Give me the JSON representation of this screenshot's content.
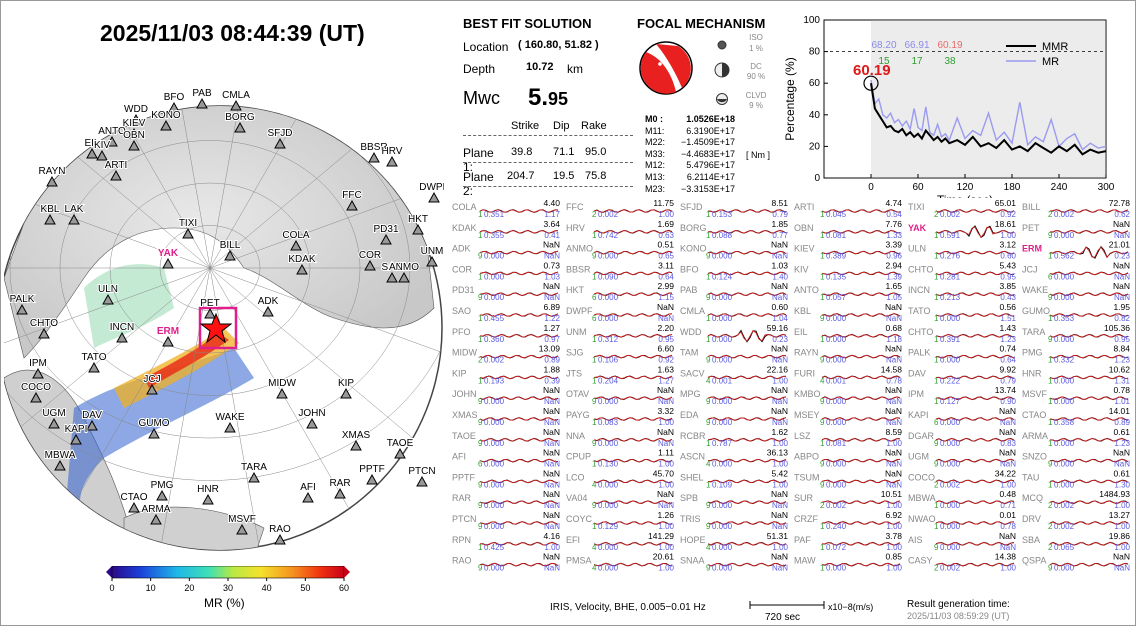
{
  "header": {
    "datetime": "2025/11/03  08:44:39 (UT)"
  },
  "best_fit": {
    "title": "BEST FIT SOLUTION",
    "location_label": "Location",
    "location_value": "( 160.80,  51.82 )",
    "depth_label": "Depth",
    "depth_value": "10.72",
    "depth_unit": "km",
    "mwc_label": "Mwc",
    "mwc_value_int": "5.",
    "mwc_value_dec": "95",
    "plane_headers": [
      "Strike",
      "Dip",
      "Rake"
    ],
    "planes": [
      {
        "label": "Plane 1:",
        "strike": "39.8",
        "dip": "71.1",
        "rake": "95.0"
      },
      {
        "label": "Plane 2:",
        "strike": "204.7",
        "dip": "19.5",
        "rake": "75.8"
      }
    ]
  },
  "focal_mechanism": {
    "title": "FOCAL MECHANISM",
    "components": [
      {
        "name": "ISO",
        "percent": "1 %"
      },
      {
        "name": "DC",
        "percent": "90 %"
      },
      {
        "name": "CLVD",
        "percent": "9 %"
      }
    ],
    "moments": [
      {
        "key": "M0 :",
        "value": "1.0526E+18"
      },
      {
        "key": "M11:",
        "value": "6.3190E+17"
      },
      {
        "key": "M22:",
        "value": "−1.4509E+17"
      },
      {
        "key": "M33:",
        "value": "−4.4683E+17"
      },
      {
        "key": "M12:",
        "value": "5.4796E+17"
      },
      {
        "key": "M13:",
        "value": "6.2114E+17"
      },
      {
        "key": "M23:",
        "value": "−3.3153E+17"
      }
    ],
    "unit": "[ Nm ]"
  },
  "chart_data": {
    "type": "line",
    "xlabel": "Time (sec)",
    "ylabel": "Percentage (%)",
    "xlim": [
      -60,
      300
    ],
    "ylim": [
      0,
      100
    ],
    "xticks": [
      0,
      60,
      120,
      180,
      240,
      300
    ],
    "yticks": [
      0,
      20,
      40,
      60,
      80,
      100
    ],
    "threshold": 80,
    "marker_value": "60.19",
    "top_values": [
      {
        "vr": "68.20",
        "count": "15",
        "vr_color": "#8b8bea",
        "count_color": "#2e9e2e"
      },
      {
        "vr": "66.91",
        "count": "17",
        "vr_color": "#8b8bea",
        "count_color": "#2e9e2e"
      },
      {
        "vr": "60.19",
        "count": "38",
        "vr_color": "#e86a6a",
        "count_color": "#2e9e2e"
      }
    ],
    "series": [
      {
        "name": "MMR",
        "color": "#000000",
        "x": [
          0,
          5,
          10,
          15,
          20,
          25,
          30,
          35,
          40,
          45,
          50,
          55,
          60,
          65,
          70,
          75,
          80,
          85,
          90,
          95,
          100,
          110,
          120,
          130,
          140,
          150,
          160,
          170,
          180,
          190,
          200,
          210,
          220,
          230,
          240,
          250,
          260,
          270,
          280,
          290,
          300
        ],
        "y": [
          60,
          44,
          40,
          36,
          32,
          33,
          30,
          29,
          31,
          27,
          29,
          26,
          28,
          25,
          30,
          27,
          24,
          26,
          23,
          25,
          22,
          24,
          21,
          26,
          20,
          22,
          19,
          24,
          18,
          20,
          17,
          22,
          19,
          16,
          20,
          17,
          21,
          15,
          18,
          16,
          17
        ]
      },
      {
        "name": "MR",
        "color": "#9a9af0",
        "x": [
          0,
          5,
          10,
          15,
          20,
          25,
          30,
          35,
          40,
          45,
          50,
          55,
          60,
          65,
          70,
          75,
          80,
          85,
          90,
          95,
          100,
          110,
          120,
          130,
          140,
          150,
          160,
          170,
          180,
          190,
          200,
          210,
          220,
          230,
          240,
          250,
          260,
          270,
          280,
          290,
          300
        ],
        "y": [
          62,
          47,
          50,
          40,
          38,
          41,
          35,
          37,
          33,
          36,
          31,
          44,
          32,
          30,
          45,
          29,
          27,
          34,
          26,
          28,
          24,
          38,
          25,
          30,
          27,
          41,
          24,
          29,
          22,
          48,
          21,
          26,
          23,
          37,
          20,
          25,
          28,
          18,
          22,
          19,
          20
        ]
      }
    ]
  },
  "map": {
    "colorbar_label": "MR (%)",
    "colorbar_ticks": [
      "0",
      "10",
      "20",
      "30",
      "40",
      "50",
      "60"
    ],
    "stations": [
      {
        "name": "WDD"
      },
      {
        "name": "BFO"
      },
      {
        "name": "PAB"
      },
      {
        "name": "CMLA"
      },
      {
        "name": "KONO"
      },
      {
        "name": "KIEV"
      },
      {
        "name": "ANTO"
      },
      {
        "name": "OBN"
      },
      {
        "name": "BORG"
      },
      {
        "name": "EIL"
      },
      {
        "name": "KIV"
      },
      {
        "name": "SFJD"
      },
      {
        "name": "BBSR"
      },
      {
        "name": "HRV"
      },
      {
        "name": "ARTI"
      },
      {
        "name": "RAYN"
      },
      {
        "name": "DWPF"
      },
      {
        "name": "KBL"
      },
      {
        "name": "LAK"
      },
      {
        "name": "FFC"
      },
      {
        "name": "TIXI"
      },
      {
        "name": "HKT"
      },
      {
        "name": "PD31"
      },
      {
        "name": "BILL"
      },
      {
        "name": "YAK"
      },
      {
        "name": "COLA"
      },
      {
        "name": "COR"
      },
      {
        "name": "UNM"
      },
      {
        "name": "ULN"
      },
      {
        "name": "SAO"
      },
      {
        "name": "ANMO"
      },
      {
        "name": "KDAK"
      },
      {
        "name": "PALK"
      },
      {
        "name": "ADK"
      },
      {
        "name": "PET"
      },
      {
        "name": "CHTO"
      },
      {
        "name": "INCN"
      },
      {
        "name": "ERM"
      },
      {
        "name": "IPM"
      },
      {
        "name": "TATO"
      },
      {
        "name": "COCO"
      },
      {
        "name": "JCJ"
      },
      {
        "name": "MIDW"
      },
      {
        "name": "KIP"
      },
      {
        "name": "UGM"
      },
      {
        "name": "DAV"
      },
      {
        "name": "KAPI"
      },
      {
        "name": "GUMO"
      },
      {
        "name": "WAKE"
      },
      {
        "name": "JOHN"
      },
      {
        "name": "TAOE"
      },
      {
        "name": "XMAS"
      },
      {
        "name": "MBWA"
      },
      {
        "name": "PTCN"
      },
      {
        "name": "TARA"
      },
      {
        "name": "PPTF"
      },
      {
        "name": "PMG"
      },
      {
        "name": "HNR"
      },
      {
        "name": "AFI"
      },
      {
        "name": "RAR"
      },
      {
        "name": "CTAO"
      },
      {
        "name": "ARMA"
      },
      {
        "name": "MSVF"
      },
      {
        "name": "RAO"
      }
    ]
  },
  "waveforms": {
    "rows": [
      [
        "COLA",
        "4.40",
        "1",
        "0.351",
        "1.17"
      ],
      [
        "FFC",
        "11.75",
        "2",
        "0.002",
        "1.00"
      ],
      [
        "SFJD",
        "8.51",
        "1",
        "0.153",
        "0.79"
      ],
      [
        "ARTI",
        "4.74",
        "1",
        "0.045",
        "0.54"
      ],
      [
        "TIXI",
        "65.01",
        "2",
        "0.002",
        "0.92"
      ],
      [
        "BILL",
        "72.78",
        "2",
        "0.002",
        "0.62"
      ],
      [
        "KDAK",
        "3.64",
        "1",
        "0.355",
        "0.41"
      ],
      [
        "HRV",
        "1.69",
        "1",
        "0.742",
        "0.63"
      ],
      [
        "BORG",
        "1.85",
        "1",
        "0.088",
        "0.77"
      ],
      [
        "OBN",
        "7.76",
        "1",
        "0.081",
        "1.33"
      ],
      [
        "YAK",
        "18.61",
        "1",
        "0.591",
        "1.00"
      ],
      [
        "PET",
        "NaN",
        "9",
        "0.000",
        "NaN"
      ],
      [
        "ADK",
        "NaN",
        "9",
        "0.000",
        "NaN"
      ],
      [
        "ANMO",
        "0.51",
        "9",
        "0.000",
        "0.65"
      ],
      [
        "KONO",
        "NaN",
        "9",
        "0.000",
        "NaN"
      ],
      [
        "KIEV",
        "3.39",
        "1",
        "0.389",
        "0.96"
      ],
      [
        "ULN",
        "3.12",
        "1",
        "0.276",
        "0.60"
      ],
      [
        "ERM",
        "21.01",
        "1",
        "0.562",
        "0.23"
      ],
      [
        "COR",
        "0.73",
        "1",
        "0.000",
        "1.03"
      ],
      [
        "BBSR",
        "3.11",
        "1",
        "0.090",
        "0.64"
      ],
      [
        "BFO",
        "1.03",
        "1",
        "0.124",
        "1.40"
      ],
      [
        "KIV",
        "2.94",
        "1",
        "0.135",
        "1.39"
      ],
      [
        "CHTO",
        "5.43",
        "1",
        "0.281",
        "0.95"
      ],
      [
        "JCJ",
        "NaN",
        "6",
        "0.000",
        "NaN"
      ],
      [
        "PD31",
        "NaN",
        "9",
        "0.000",
        "NaN"
      ],
      [
        "HKT",
        "2.99",
        "6",
        "0.000",
        "1.15"
      ],
      [
        "PAB",
        "NaN",
        "9",
        "0.000",
        "NaN"
      ],
      [
        "ANTO",
        "1.65",
        "1",
        "0.057",
        "1.05"
      ],
      [
        "INCN",
        "3.85",
        "1",
        "0.213",
        "0.43"
      ],
      [
        "WAKE",
        "NaN",
        "9",
        "0.000",
        "NaN"
      ],
      [
        "SAO",
        "6.89",
        "1",
        "0.455",
        "1.22"
      ],
      [
        "DWPF",
        "NaN",
        "6",
        "0.000",
        "NaN"
      ],
      [
        "CMLA",
        "0.60",
        "1",
        "0.000",
        "1.04"
      ],
      [
        "KBL",
        "NaN",
        "9",
        "0.000",
        "NaN"
      ],
      [
        "TATO",
        "0.56",
        "1",
        "0.000",
        "1.51"
      ],
      [
        "GUMO",
        "1.95",
        "1",
        "0.353",
        "0.82"
      ],
      [
        "PFO",
        "1.27",
        "1",
        "0.360",
        "0.97"
      ],
      [
        "UNM",
        "2.20",
        "1",
        "0.312",
        "0.95"
      ],
      [
        "WDD",
        "59.16",
        "1",
        "0.000",
        "0.23"
      ],
      [
        "EIL",
        "0.68",
        "1",
        "0.000",
        "1.18"
      ],
      [
        "CHTO",
        "1.43",
        "1",
        "0.391",
        "1.23"
      ],
      [
        "TARA",
        "105.36",
        "9",
        "0.000",
        "0.95"
      ],
      [
        "MIDW",
        "13.09",
        "2",
        "0.002",
        "0.89"
      ],
      [
        "SJG",
        "6.60",
        "1",
        "0.106",
        "0.92"
      ],
      [
        "TAM",
        "NaN",
        "9",
        "0.000",
        "NaN"
      ],
      [
        "RAYN",
        "NaN",
        "9",
        "0.000",
        "NaN"
      ],
      [
        "PALK",
        "0.74",
        "1",
        "0.000",
        "0.64"
      ],
      [
        "PMG",
        "8.84",
        "1",
        "0.332",
        "1.23"
      ],
      [
        "KIP",
        "1.88",
        "1",
        "0.193",
        "0.39"
      ],
      [
        "JTS",
        "1.63",
        "1",
        "0.204",
        "1.27"
      ],
      [
        "SACV",
        "22.16",
        "4",
        "0.001",
        "1.00"
      ],
      [
        "FURI",
        "14.58",
        "4",
        "0.001",
        "0.78"
      ],
      [
        "DAV",
        "9.92",
        "1",
        "0.222",
        "0.79"
      ],
      [
        "HNR",
        "10.62",
        "1",
        "0.000",
        "1.31"
      ],
      [
        "JOHN",
        "NaN",
        "9",
        "0.000",
        "NaN"
      ],
      [
        "OTAV",
        "NaN",
        "9",
        "0.000",
        "NaN"
      ],
      [
        "MPG",
        "NaN",
        "9",
        "0.000",
        "NaN"
      ],
      [
        "KMBO",
        "NaN",
        "9",
        "0.000",
        "NaN"
      ],
      [
        "IPM",
        "13.74",
        "1",
        "0.127",
        "0.90"
      ],
      [
        "MSVF",
        "0.78",
        "1",
        "0.000",
        "1.01"
      ],
      [
        "XMAS",
        "NaN",
        "9",
        "0.000",
        "NaN"
      ],
      [
        "PAYG",
        "3.32",
        "1",
        "0.083",
        "1.00"
      ],
      [
        "EDA",
        "NaN",
        "9",
        "0.000",
        "NaN"
      ],
      [
        "MSEY",
        "NaN",
        "9",
        "0.000",
        "NaN"
      ],
      [
        "KAPI",
        "NaN",
        "6",
        "0.000",
        "NaN"
      ],
      [
        "CTAO",
        "14.01",
        "1",
        "0.358",
        "0.89"
      ],
      [
        "TAOE",
        "NaN",
        "9",
        "0.000",
        "NaN"
      ],
      [
        "NNA",
        "NaN",
        "9",
        "0.000",
        "NaN"
      ],
      [
        "RCBR",
        "1.62",
        "1",
        "0.787",
        "1.00"
      ],
      [
        "LSZ",
        "8.59",
        "1",
        "0.081",
        "1.00"
      ],
      [
        "DGAR",
        "NaN",
        "9",
        "0.000",
        "0.83"
      ],
      [
        "ARMA",
        "0.61",
        "1",
        "0.000",
        "1.23"
      ],
      [
        "AFI",
        "NaN",
        "6",
        "0.000",
        "NaN"
      ],
      [
        "CPUP",
        "1.11",
        "1",
        "0.130",
        "1.00"
      ],
      [
        "ASCN",
        "36.13",
        "4",
        "0.000",
        "1.00"
      ],
      [
        "ABPO",
        "NaN",
        "9",
        "0.000",
        "NaN"
      ],
      [
        "UGM",
        "NaN",
        "9",
        "0.000",
        "NaN"
      ],
      [
        "SNZO",
        "NaN",
        "9",
        "0.000",
        "NaN"
      ],
      [
        "PPTF",
        "NaN",
        "9",
        "0.000",
        "NaN"
      ],
      [
        "LCO",
        "45.70",
        "4",
        "0.000",
        "1.00"
      ],
      [
        "SHEL",
        "5.42",
        "1",
        "0.109",
        "1.00"
      ],
      [
        "TSUM",
        "NaN",
        "9",
        "0.000",
        "NaN"
      ],
      [
        "COCO",
        "34.22",
        "2",
        "0.002",
        "1.00"
      ],
      [
        "TAU",
        "0.61",
        "1",
        "0.000",
        "1.30"
      ],
      [
        "RAR",
        "NaN",
        "9",
        "0.000",
        "NaN"
      ],
      [
        "VA04",
        "NaN",
        "9",
        "0.000",
        "NaN"
      ],
      [
        "SPB",
        "NaN",
        "9",
        "0.000",
        "NaN"
      ],
      [
        "SUR",
        "10.51",
        "2",
        "0.002",
        "1.00"
      ],
      [
        "MBWA",
        "0.48",
        "1",
        "0.000",
        "0.71"
      ],
      [
        "MCQ",
        "1484.93",
        "2",
        "0.002",
        "1.00"
      ],
      [
        "PTCN",
        "NaN",
        "9",
        "0.000",
        "NaN"
      ],
      [
        "COYC",
        "1.26",
        "1",
        "0.129",
        "1.00"
      ],
      [
        "TRIS",
        "NaN",
        "9",
        "0.000",
        "NaN"
      ],
      [
        "CRZF",
        "6.92",
        "1",
        "0.240",
        "1.00"
      ],
      [
        "NWAO",
        "0.01",
        "1",
        "0.000",
        "0.78"
      ],
      [
        "DRV",
        "13.27",
        "2",
        "0.002",
        "1.00"
      ],
      [
        "RPN",
        "4.16",
        "1",
        "0.425",
        "1.00"
      ],
      [
        "EFI",
        "141.29",
        "4",
        "0.000",
        "1.00"
      ],
      [
        "HOPE",
        "51.31",
        "4",
        "0.000",
        "1.00"
      ],
      [
        "PAF",
        "3.78",
        "1",
        "0.072",
        "1.00"
      ],
      [
        "AIS",
        "NaN",
        "9",
        "0.000",
        "NaN"
      ],
      [
        "SBA",
        "19.86",
        "2",
        "0.065",
        "1.00"
      ],
      [
        "RAO",
        "NaN",
        "9",
        "0.000",
        "NaN"
      ],
      [
        "PMSA",
        "20.61",
        "4",
        "0.000",
        "1.00"
      ],
      [
        "SNAA",
        "NaN",
        "9",
        "0.000",
        "NaN"
      ],
      [
        "MAW",
        "0.85",
        "1",
        "0.000",
        "1.00"
      ],
      [
        "CASY",
        "14.38",
        "2",
        "0.002",
        "1.00"
      ],
      [
        "QSPA",
        "NaN",
        "9",
        "0.000",
        "NaN"
      ]
    ],
    "highlight_stations": [
      "YAK",
      "ERM"
    ]
  },
  "footer": {
    "info": "IRIS, Velocity,   BHE, 0.005−0.01 Hz",
    "scale_length": "720 sec",
    "scale_unit": "x10−8(m/s)",
    "generation_label": "Result generation time:",
    "generation_time": "2025/11/03 08:59:29 (UT)"
  }
}
